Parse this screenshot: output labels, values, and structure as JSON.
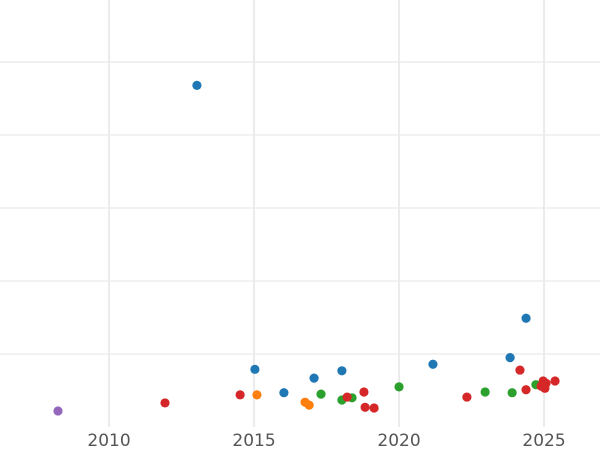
{
  "chart_data": {
    "type": "scatter",
    "title": "",
    "xlabel": "",
    "ylabel": "",
    "xlim": [
      2006.24,
      2026.93
    ],
    "ylim": [
      0,
      5.85
    ],
    "x_ticks": [
      2010,
      2015,
      2020,
      2025
    ],
    "x_tick_labels": [
      "2010",
      "2015",
      "2020",
      "2025"
    ],
    "y_grid": [
      1,
      2,
      3,
      4,
      5
    ],
    "grid": true,
    "legend": "none",
    "colors": {
      "blue": "#1f77b4",
      "orange": "#ff7f0e",
      "green": "#2ca02c",
      "red": "#d62728",
      "purple": "#9467bd"
    },
    "series": [
      {
        "color": "#1f77b4",
        "points": [
          [
            2013.03,
            4.68
          ],
          [
            2015.03,
            0.79
          ],
          [
            2016.03,
            0.47
          ],
          [
            2017.07,
            0.67
          ],
          [
            2018.03,
            0.77
          ],
          [
            2021.17,
            0.86
          ],
          [
            2023.83,
            0.95
          ],
          [
            2024.38,
            1.49
          ]
        ]
      },
      {
        "color": "#ff7f0e",
        "points": [
          [
            2015.1,
            0.44
          ],
          [
            2016.76,
            0.34
          ],
          [
            2016.9,
            0.3
          ]
        ]
      },
      {
        "color": "#2ca02c",
        "points": [
          [
            2017.31,
            0.45
          ],
          [
            2018.03,
            0.37
          ],
          [
            2018.38,
            0.4
          ],
          [
            2020.0,
            0.55
          ],
          [
            2022.97,
            0.48
          ],
          [
            2023.9,
            0.47
          ],
          [
            2024.72,
            0.58
          ]
        ]
      },
      {
        "color": "#d62728",
        "points": [
          [
            2011.93,
            0.33
          ],
          [
            2014.52,
            0.44
          ],
          [
            2018.21,
            0.41
          ],
          [
            2018.79,
            0.48
          ],
          [
            2018.83,
            0.27
          ],
          [
            2019.14,
            0.26
          ],
          [
            2022.34,
            0.41
          ],
          [
            2024.17,
            0.78
          ],
          [
            2024.38,
            0.51
          ],
          [
            2024.97,
            0.63
          ],
          [
            2025.03,
            0.53
          ],
          [
            2024.9,
            0.56
          ],
          [
            2025.07,
            0.6
          ],
          [
            2025.38,
            0.63
          ]
        ]
      },
      {
        "color": "#9467bd",
        "points": [
          [
            2008.24,
            0.22
          ]
        ]
      }
    ]
  }
}
